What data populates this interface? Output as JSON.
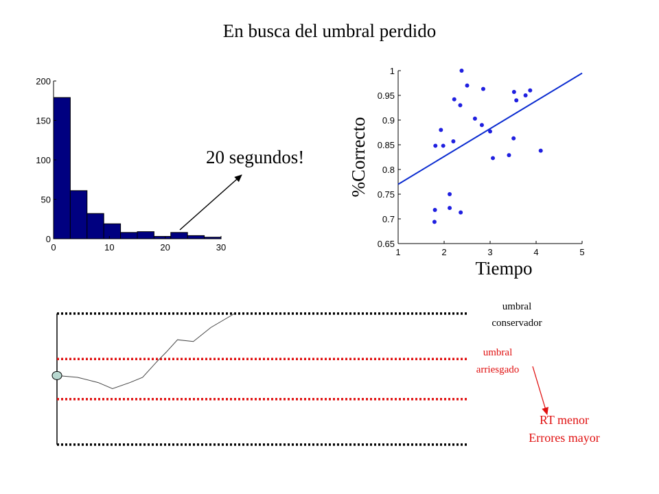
{
  "title": "En busca del umbral perdido",
  "annotation": "20 segundos!",
  "colors": {
    "bar_fill": "#000080",
    "scatter_point": "#1f1fe0",
    "fit_line": "#0a2bd0",
    "risky": "#e01010",
    "conservative": "#000000"
  },
  "chart_data": [
    {
      "type": "bar",
      "bins": [
        {
          "start": 0,
          "end": 3,
          "value": 179
        },
        {
          "start": 3,
          "end": 6,
          "value": 61
        },
        {
          "start": 6,
          "end": 9,
          "value": 32
        },
        {
          "start": 9,
          "end": 12,
          "value": 19
        },
        {
          "start": 12,
          "end": 15,
          "value": 8
        },
        {
          "start": 15,
          "end": 18,
          "value": 9
        },
        {
          "start": 18,
          "end": 21,
          "value": 3
        },
        {
          "start": 21,
          "end": 24,
          "value": 8
        },
        {
          "start": 24,
          "end": 27,
          "value": 4
        },
        {
          "start": 27,
          "end": 30,
          "value": 2
        }
      ],
      "xlim": [
        0,
        30
      ],
      "ylim": [
        0,
        200
      ],
      "xticks": [
        0,
        10,
        20,
        30
      ],
      "yticks": [
        0,
        50,
        100,
        150,
        200
      ]
    },
    {
      "type": "scatter",
      "xlabel": "Tiempo",
      "ylabel": "%Correcto",
      "xlim": [
        1,
        5
      ],
      "ylim": [
        0.65,
        1
      ],
      "xticks": [
        1,
        2,
        3,
        4,
        5
      ],
      "yticks": [
        0.65,
        0.7,
        0.75,
        0.8,
        0.85,
        0.9,
        0.95,
        1
      ],
      "points": [
        {
          "x": 2.38,
          "y": 1.0
        },
        {
          "x": 2.5,
          "y": 0.97
        },
        {
          "x": 2.85,
          "y": 0.963
        },
        {
          "x": 2.22,
          "y": 0.942
        },
        {
          "x": 2.35,
          "y": 0.93
        },
        {
          "x": 3.52,
          "y": 0.957
        },
        {
          "x": 3.57,
          "y": 0.94
        },
        {
          "x": 3.77,
          "y": 0.95
        },
        {
          "x": 3.87,
          "y": 0.96
        },
        {
          "x": 2.67,
          "y": 0.903
        },
        {
          "x": 2.82,
          "y": 0.89
        },
        {
          "x": 1.93,
          "y": 0.88
        },
        {
          "x": 3.0,
          "y": 0.877
        },
        {
          "x": 3.51,
          "y": 0.863
        },
        {
          "x": 2.2,
          "y": 0.857
        },
        {
          "x": 1.81,
          "y": 0.848
        },
        {
          "x": 1.98,
          "y": 0.848
        },
        {
          "x": 4.1,
          "y": 0.838
        },
        {
          "x": 3.41,
          "y": 0.829
        },
        {
          "x": 3.06,
          "y": 0.823
        },
        {
          "x": 2.12,
          "y": 0.75
        },
        {
          "x": 1.8,
          "y": 0.718
        },
        {
          "x": 2.12,
          "y": 0.722
        },
        {
          "x": 2.36,
          "y": 0.713
        },
        {
          "x": 1.79,
          "y": 0.694
        }
      ],
      "fit_line": {
        "x": [
          1,
          5
        ],
        "y": [
          0.77,
          0.995
        ]
      }
    },
    {
      "type": "line",
      "x": [
        0,
        1.3,
        2.6,
        3.5,
        4.6,
        5.4,
        6.3,
        6.9,
        7.6,
        8.6,
        9.7,
        11.2
      ],
      "y": [
        0.45,
        0.35,
        0.05,
        -0.3,
        0.05,
        0.35,
        1.25,
        1.8,
        2.5,
        2.4,
        3.2,
        4.0
      ],
      "thresholds": [
        {
          "kind": "conservador",
          "y": 4.0
        },
        {
          "kind": "arriesgado",
          "y": 1.4
        },
        {
          "kind": "arriesgado",
          "y": -0.9
        },
        {
          "kind": "conservador",
          "y": -3.5
        }
      ],
      "labels": {
        "conservative": [
          "umbral",
          "conservador"
        ],
        "risky": [
          "umbral",
          "arriesgado"
        ],
        "consequence": [
          "RT menor",
          "Errores mayor"
        ]
      }
    }
  ]
}
